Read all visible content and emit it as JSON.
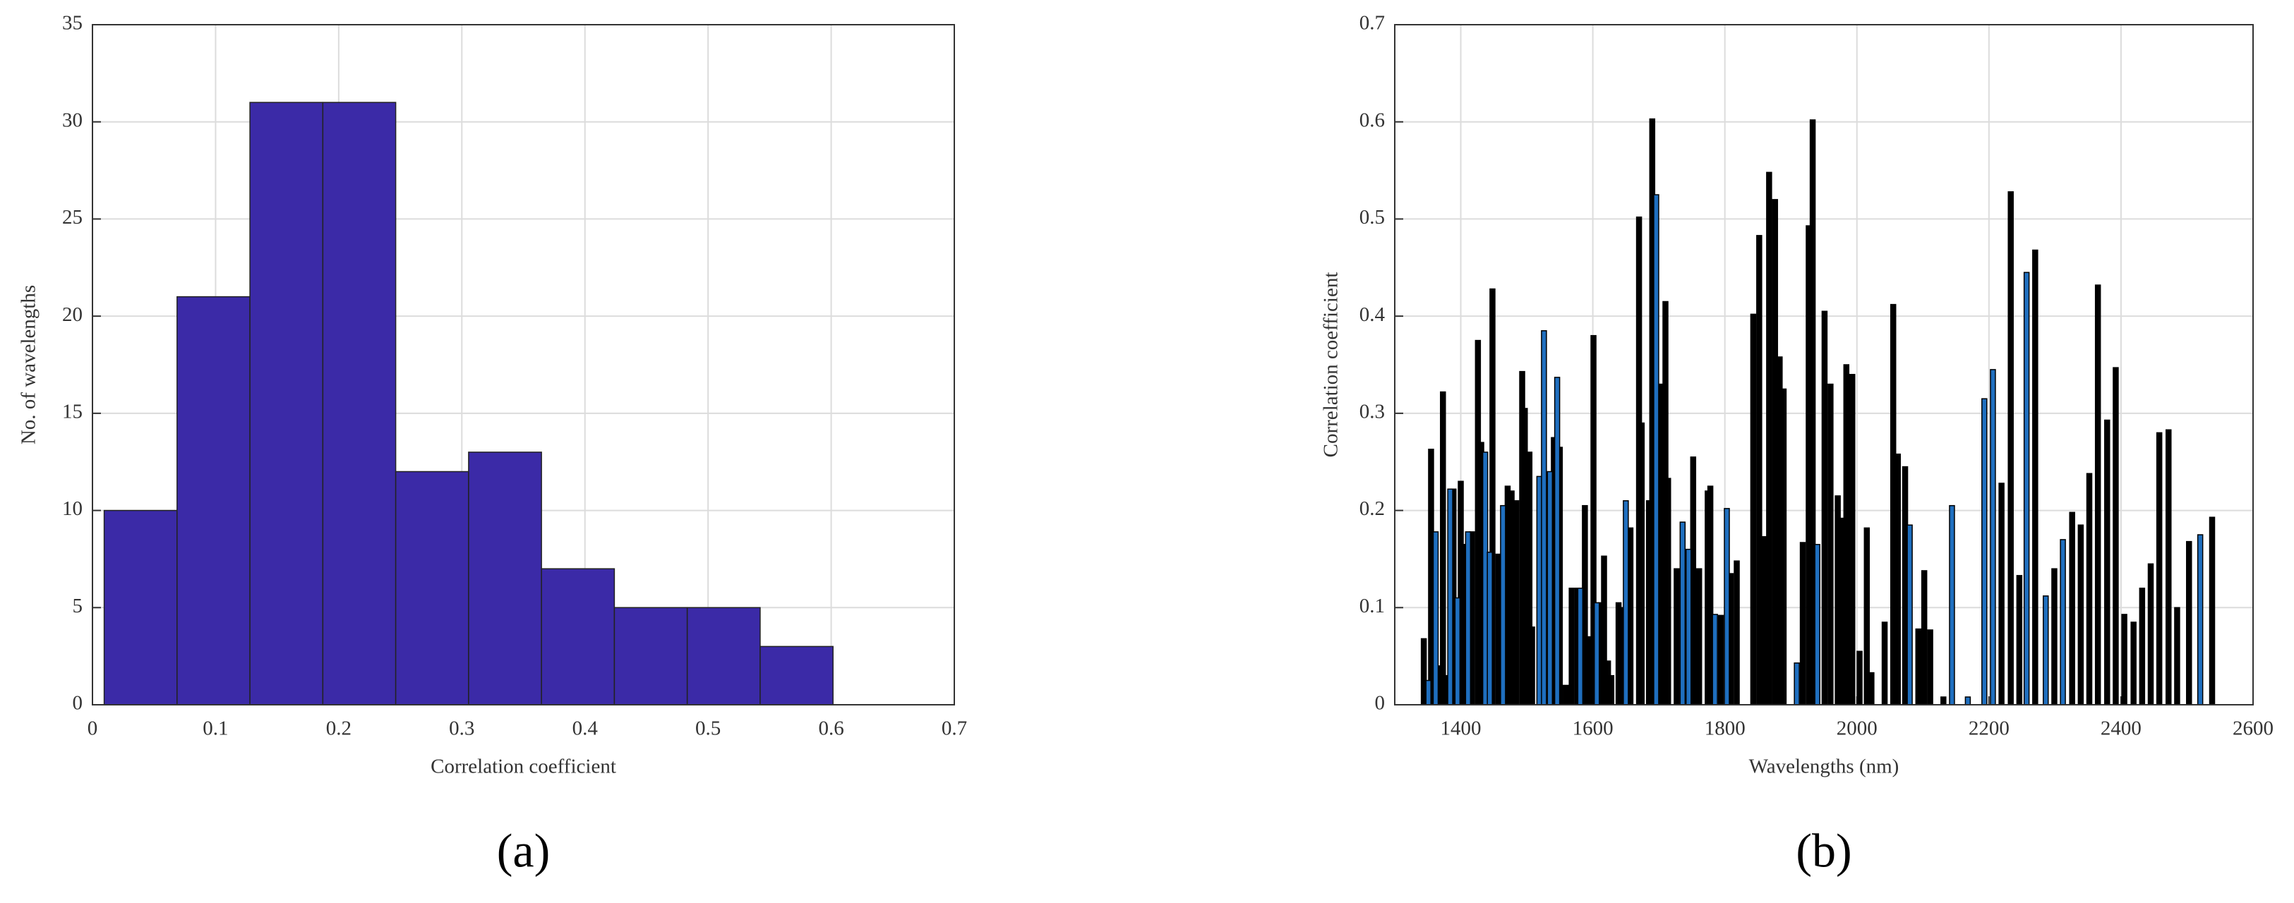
{
  "chart_data": [
    {
      "type": "histogram",
      "label": "(a)",
      "xlabel": "Correlation coefficient",
      "ylabel": "No. of wavelengths",
      "bins": [
        0.0095,
        0.0687,
        0.1279,
        0.1871,
        0.2463,
        0.3055,
        0.3647,
        0.4239,
        0.4831,
        0.5423,
        0.6015
      ],
      "values": [
        10,
        21,
        31,
        31,
        12,
        13,
        7,
        5,
        5,
        3
      ],
      "color": "#3b2aa7",
      "xlim": [
        0,
        0.7
      ],
      "xticks": [
        0,
        0.1,
        0.2,
        0.3,
        0.4,
        0.5,
        0.6,
        0.7
      ],
      "ylim": [
        0,
        35
      ],
      "yticks": [
        0,
        5,
        10,
        15,
        20,
        25,
        30,
        35
      ],
      "grid": true
    },
    {
      "type": "bar",
      "label": "(b)",
      "xlabel": "Wavelengths (nm)",
      "ylabel": "Correlation coefficient",
      "series": [
        {
          "color": "#000000",
          "x": [
            1344,
            1355,
            1369,
            1373,
            1378,
            1389,
            1400,
            1406,
            1417,
            1426,
            1431,
            1448,
            1457,
            1471,
            1477,
            1484,
            1493,
            1497,
            1504,
            1508,
            1541,
            1550,
            1559,
            1568,
            1577,
            1588,
            1595,
            1601,
            1612,
            1617,
            1623,
            1628,
            1639,
            1643,
            1657,
            1670,
            1674,
            1685,
            1690,
            1703,
            1710,
            1714,
            1727,
            1752,
            1761,
            1774,
            1778,
            1794,
            1809,
            1818,
            1843,
            1852,
            1860,
            1867,
            1876,
            1883,
            1889,
            1918,
            1927,
            1933,
            1951,
            1960,
            1971,
            1978,
            1984,
            1993,
            2004,
            2015,
            2022,
            2042,
            2055,
            2062,
            2073,
            2093,
            2102,
            2111,
            2131,
            2219,
            2233,
            2246,
            2270,
            2299,
            2326,
            2339,
            2352,
            2365,
            2379,
            2392,
            2405,
            2419,
            2432,
            2445,
            2458,
            2472,
            2485,
            2503,
            2538
          ],
          "values": [
            0.068,
            0.263,
            0.04,
            0.322,
            0.03,
            0.222,
            0.23,
            0.165,
            0.178,
            0.375,
            0.27,
            0.428,
            0.155,
            0.225,
            0.22,
            0.21,
            0.343,
            0.305,
            0.26,
            0.08,
            0.275,
            0.265,
            0.02,
            0.12,
            0.12,
            0.205,
            0.07,
            0.38,
            0.105,
            0.153,
            0.045,
            0.03,
            0.105,
            0.1,
            0.182,
            0.502,
            0.29,
            0.21,
            0.603,
            0.33,
            0.415,
            0.233,
            0.14,
            0.255,
            0.14,
            0.22,
            0.225,
            0.092,
            0.135,
            0.148,
            0.402,
            0.483,
            0.173,
            0.548,
            0.52,
            0.358,
            0.325,
            0.167,
            0.493,
            0.602,
            0.405,
            0.33,
            0.215,
            0.192,
            0.35,
            0.34,
            0.055,
            0.182,
            0.033,
            0.085,
            0.412,
            0.258,
            0.245,
            0.078,
            0.138,
            0.077,
            0.008,
            0.228,
            0.528,
            0.133,
            0.468,
            0.14,
            0.198,
            0.185,
            0.238,
            0.432,
            0.293,
            0.347,
            0.093,
            0.085,
            0.12,
            0.145,
            0.28,
            0.283,
            0.1,
            0.168,
            0.193
          ]
        },
        {
          "color": "#1f6fbf",
          "x": [
            1351,
            1362,
            1384,
            1395,
            1411,
            1437,
            1444,
            1464,
            1519,
            1526,
            1535,
            1546,
            1581,
            1606,
            1650,
            1696,
            1736,
            1745,
            1785,
            1803,
            1909,
            1940,
            2080,
            2144,
            2168,
            2193,
            2206,
            2257,
            2286,
            2312,
            2520
          ],
          "values": [
            0.025,
            0.178,
            0.222,
            0.11,
            0.178,
            0.26,
            0.157,
            0.205,
            0.235,
            0.385,
            0.24,
            0.337,
            0.12,
            0.105,
            0.21,
            0.525,
            0.188,
            0.16,
            0.093,
            0.202,
            0.043,
            0.165,
            0.185,
            0.205,
            0.008,
            0.315,
            0.345,
            0.445,
            0.112,
            0.17,
            0.175
          ]
        }
      ],
      "xlim": [
        1300,
        2600
      ],
      "xticks": [
        1400,
        1600,
        1800,
        2000,
        2200,
        2400,
        2600
      ],
      "ylim": [
        0,
        0.7
      ],
      "yticks": [
        0,
        0.1,
        0.2,
        0.3,
        0.4,
        0.5,
        0.6,
        0.7
      ],
      "grid": true
    }
  ]
}
